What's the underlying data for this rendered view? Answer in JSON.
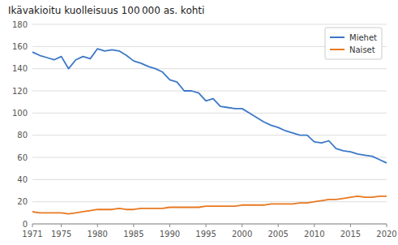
{
  "chart_data": {
    "type": "line",
    "title": "Ikävakioitu kuolleisuus 100 000 as. kohti",
    "x": [
      1971,
      1972,
      1973,
      1974,
      1975,
      1976,
      1977,
      1978,
      1979,
      1980,
      1981,
      1982,
      1983,
      1984,
      1985,
      1986,
      1987,
      1988,
      1989,
      1990,
      1991,
      1992,
      1993,
      1994,
      1995,
      1996,
      1997,
      1998,
      1999,
      2000,
      2001,
      2002,
      2003,
      2004,
      2005,
      2006,
      2007,
      2008,
      2009,
      2010,
      2011,
      2012,
      2013,
      2014,
      2015,
      2016,
      2017,
      2018,
      2019,
      2020
    ],
    "series": [
      {
        "name": "Miehet",
        "color": "#3c78c8",
        "values": [
          155,
          152,
          150,
          148,
          151,
          140,
          148,
          151,
          149,
          158,
          156,
          157,
          156,
          152,
          147,
          145,
          142,
          140,
          137,
          130,
          128,
          120,
          120,
          118,
          111,
          113,
          106,
          105,
          104,
          104,
          100,
          96,
          92,
          89,
          87,
          84,
          82,
          80,
          80,
          74,
          73,
          75,
          68,
          66,
          65,
          63,
          62,
          61,
          58,
          55
        ]
      },
      {
        "name": "Naiset",
        "color": "#e87820",
        "values": [
          11,
          10,
          10,
          10,
          10,
          9,
          10,
          11,
          12,
          13,
          13,
          13,
          14,
          13,
          13,
          14,
          14,
          14,
          14,
          15,
          15,
          15,
          15,
          15,
          16,
          16,
          16,
          16,
          16,
          17,
          17,
          17,
          17,
          18,
          18,
          18,
          18,
          19,
          19,
          20,
          21,
          22,
          22,
          23,
          24,
          25,
          24,
          24,
          25,
          25
        ]
      }
    ],
    "xlim": [
      1971,
      2020
    ],
    "xticks": [
      1971,
      1975,
      1980,
      1985,
      1990,
      1995,
      2000,
      2005,
      2010,
      2015,
      2020
    ],
    "ylim": [
      0,
      180
    ],
    "yticks": [
      0,
      20,
      40,
      60,
      80,
      100,
      120,
      140,
      160,
      180
    ],
    "grid": true,
    "legend": "upper right"
  }
}
